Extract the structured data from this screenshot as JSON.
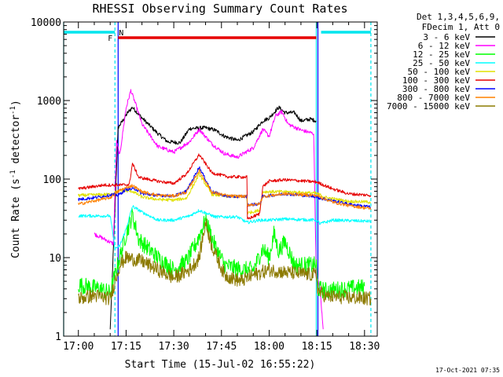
{
  "chart_data": {
    "type": "line",
    "title": "RHESSI Observing Summary Count Rates",
    "xlabel": "Start Time (15-Jul-02 16:55:22)",
    "ylabel_main": "Count Rate (s",
    "ylabel_sup1": "-1",
    "ylabel_mid": " detector",
    "ylabel_sup2": "-1",
    "ylabel_end": ")",
    "yscale": "log",
    "xlim": [
      "16:55:22",
      "18:34:00"
    ],
    "ylim": [
      1,
      10000
    ],
    "x_ticks": [
      "17:00",
      "17:15",
      "17:30",
      "17:45",
      "18:00",
      "18:15",
      "18:30"
    ],
    "y_ticks": [
      "1",
      "10",
      "100",
      "1000",
      "10000"
    ],
    "legend_header": [
      "Det 1,3,4,5,6,9,",
      "FDecim 1, Att 0"
    ],
    "legend_placement": "right",
    "timestamp": "17-Oct-2021 07:35",
    "flags": [
      {
        "label": "N",
        "color": "#00e5ee",
        "segments": [
          [
            "16:55:22",
            "17:11:30"
          ],
          [
            "18:16:20",
            "18:32:00"
          ]
        ]
      },
      {
        "label": "F",
        "color": "#e60000",
        "segments": [
          [
            "17:12:30",
            "18:14:50"
          ]
        ]
      }
    ],
    "markers": [
      {
        "time": "16:55:22",
        "color": "#00e5ee",
        "style": "solid"
      },
      {
        "time": "17:11:30",
        "color": "#00e5ee",
        "style": "dashed"
      },
      {
        "time": "18:14:50",
        "color": "#00e5ee",
        "style": "solid"
      },
      {
        "time": "18:32:00",
        "color": "#00e5ee",
        "style": "dashed"
      },
      {
        "time": "17:12:30",
        "color": "#0000ff",
        "style": "solid"
      },
      {
        "time": "18:15:20",
        "color": "#0000ff",
        "style": "solid"
      }
    ],
    "series": [
      {
        "name": "3 - 6 keV",
        "color": "#000000",
        "points": [
          [
            "17:10:00",
            1.2
          ],
          [
            "17:12:30",
            450
          ],
          [
            "17:15:30",
            700
          ],
          [
            "17:17:00",
            820
          ],
          [
            "17:20:00",
            600
          ],
          [
            "17:25:00",
            380
          ],
          [
            "17:28:00",
            300
          ],
          [
            "17:32:00",
            290
          ],
          [
            "17:35:00",
            440
          ],
          [
            "17:40:00",
            450
          ],
          [
            "17:43:00",
            420
          ],
          [
            "17:46:00",
            350
          ],
          [
            "17:50:00",
            310
          ],
          [
            "17:55:00",
            400
          ],
          [
            "17:58:00",
            550
          ],
          [
            "18:00:00",
            600
          ],
          [
            "18:03:00",
            820
          ],
          [
            "18:05:00",
            700
          ],
          [
            "18:08:00",
            700
          ],
          [
            "18:10:00",
            550
          ],
          [
            "18:13:00",
            580
          ],
          [
            "18:14:50",
            550
          ]
        ]
      },
      {
        "name": "6 - 12 keV",
        "color": "#ff00ff",
        "points": [
          [
            "17:05:00",
            20
          ],
          [
            "17:11:00",
            15
          ],
          [
            "17:12:00",
            300
          ],
          [
            "17:13:00",
            200
          ],
          [
            "17:15:00",
            800
          ],
          [
            "17:16:30",
            1350
          ],
          [
            "17:18:00",
            900
          ],
          [
            "17:20:00",
            500
          ],
          [
            "17:25:00",
            260
          ],
          [
            "17:30:00",
            220
          ],
          [
            "17:35:00",
            300
          ],
          [
            "17:38:00",
            430
          ],
          [
            "17:42:00",
            280
          ],
          [
            "17:46:00",
            210
          ],
          [
            "17:50:00",
            190
          ],
          [
            "17:55:00",
            250
          ],
          [
            "17:58:00",
            430
          ],
          [
            "18:00:00",
            350
          ],
          [
            "18:02:00",
            640
          ],
          [
            "18:04:00",
            720
          ],
          [
            "18:06:00",
            500
          ],
          [
            "18:10:00",
            420
          ],
          [
            "18:14:00",
            380
          ],
          [
            "18:14:50",
            6
          ],
          [
            "18:16:00",
            4
          ],
          [
            "18:17:00",
            1.2
          ]
        ]
      },
      {
        "name": "12 - 25 keV",
        "color": "#00ff00",
        "points": [
          [
            "17:00:00",
            4.5
          ],
          [
            "17:07:00",
            4
          ],
          [
            "17:10:00",
            3.5
          ],
          [
            "17:11:30",
            6
          ],
          [
            "17:13:00",
            10
          ],
          [
            "17:15:00",
            20
          ],
          [
            "17:17:00",
            35
          ],
          [
            "17:19:00",
            17
          ],
          [
            "17:25:00",
            10
          ],
          [
            "17:30:00",
            7
          ],
          [
            "17:34:00",
            9
          ],
          [
            "17:37:00",
            15
          ],
          [
            "17:40:00",
            30
          ],
          [
            "17:43:00",
            14
          ],
          [
            "17:46:00",
            8
          ],
          [
            "17:51:00",
            7
          ],
          [
            "17:55:00",
            7
          ],
          [
            "17:58:00",
            13
          ],
          [
            "18:00:00",
            10
          ],
          [
            "18:01:30",
            20
          ],
          [
            "18:03:00",
            12
          ],
          [
            "18:05:00",
            16
          ],
          [
            "18:08:00",
            8
          ],
          [
            "18:14:50",
            8
          ],
          [
            "18:15:20",
            4
          ],
          [
            "18:18:00",
            3.8
          ],
          [
            "18:30:00",
            4.2
          ]
        ]
      },
      {
        "name": "25 - 50 keV",
        "color": "#00ffff",
        "points": [
          [
            "17:00:00",
            34
          ],
          [
            "17:10:00",
            34
          ],
          [
            "17:11:30",
            13
          ],
          [
            "17:13:00",
            14
          ],
          [
            "17:15:00",
            23
          ],
          [
            "17:17:00",
            45
          ],
          [
            "17:20:00",
            38
          ],
          [
            "17:25:00",
            30
          ],
          [
            "17:30:00",
            30
          ],
          [
            "17:35:00",
            34
          ],
          [
            "17:38:00",
            40
          ],
          [
            "17:43:00",
            33
          ],
          [
            "17:50:00",
            33
          ],
          [
            "17:53:00",
            28
          ],
          [
            "17:57:00",
            30
          ],
          [
            "18:00:00",
            30
          ],
          [
            "18:05:00",
            31
          ],
          [
            "18:14:50",
            30
          ],
          [
            "18:16:00",
            27
          ],
          [
            "18:20:00",
            30
          ],
          [
            "18:32:00",
            29
          ]
        ]
      },
      {
        "name": "50 - 100 keV",
        "color": "#e0e000",
        "points": [
          [
            "17:00:00",
            62
          ],
          [
            "17:10:00",
            64
          ],
          [
            "17:13:00",
            71
          ],
          [
            "17:17:00",
            70
          ],
          [
            "17:20:00",
            59
          ],
          [
            "17:25:00",
            55
          ],
          [
            "17:30:00",
            54
          ],
          [
            "17:34:00",
            57
          ],
          [
            "17:38:00",
            115
          ],
          [
            "17:42:00",
            64
          ],
          [
            "17:47:00",
            60
          ],
          [
            "17:53:00",
            60
          ],
          [
            "17:53:10",
            37
          ],
          [
            "17:57:00",
            40
          ],
          [
            "17:58:00",
            69
          ],
          [
            "18:05:00",
            69
          ],
          [
            "18:14:50",
            66
          ],
          [
            "18:18:00",
            58
          ],
          [
            "18:25:00",
            52
          ],
          [
            "18:32:00",
            51
          ]
        ]
      },
      {
        "name": "100 - 300 keV",
        "color": "#e60000",
        "points": [
          [
            "17:00:00",
            75
          ],
          [
            "17:08:00",
            84
          ],
          [
            "17:13:00",
            84
          ],
          [
            "17:16:00",
            85
          ],
          [
            "17:17:00",
            158
          ],
          [
            "17:19:00",
            105
          ],
          [
            "17:25:00",
            94
          ],
          [
            "17:30:00",
            88
          ],
          [
            "17:34:00",
            116
          ],
          [
            "17:38:00",
            205
          ],
          [
            "17:42:00",
            120
          ],
          [
            "17:47:00",
            107
          ],
          [
            "17:53:00",
            106
          ],
          [
            "17:53:10",
            31
          ],
          [
            "17:57:00",
            36
          ],
          [
            "17:58:00",
            80
          ],
          [
            "18:00:00",
            94
          ],
          [
            "18:05:00",
            98
          ],
          [
            "18:14:50",
            92
          ],
          [
            "18:20:00",
            75
          ],
          [
            "18:25:00",
            65
          ],
          [
            "18:32:00",
            62
          ]
        ]
      },
      {
        "name": "300 - 800 keV",
        "color": "#0000ff",
        "points": [
          [
            "17:00:00",
            55
          ],
          [
            "17:05:00",
            58
          ],
          [
            "17:11:30",
            64
          ],
          [
            "17:12:30",
            62
          ],
          [
            "17:15:00",
            74
          ],
          [
            "17:18:00",
            75
          ],
          [
            "17:20:00",
            65
          ],
          [
            "17:25:00",
            62
          ],
          [
            "17:30:00",
            61
          ],
          [
            "17:34:00",
            70
          ],
          [
            "17:38:00",
            142
          ],
          [
            "17:42:00",
            69
          ],
          [
            "17:47:00",
            60
          ],
          [
            "17:53:00",
            60
          ],
          [
            "17:53:10",
            47
          ],
          [
            "17:57:00",
            48
          ],
          [
            "17:58:00",
            60
          ],
          [
            "18:05:00",
            65
          ],
          [
            "18:14:50",
            60
          ],
          [
            "18:16:00",
            57
          ],
          [
            "18:25:00",
            48
          ],
          [
            "18:32:00",
            44
          ]
        ]
      },
      {
        "name": "800 - 7000 keV",
        "color": "#ff8000",
        "points": [
          [
            "17:00:00",
            48
          ],
          [
            "17:10:00",
            58
          ],
          [
            "17:13:00",
            72
          ],
          [
            "17:17:00",
            83
          ],
          [
            "17:20:00",
            69
          ],
          [
            "17:25:00",
            62
          ],
          [
            "17:30:00",
            61
          ],
          [
            "17:34:00",
            68
          ],
          [
            "17:38:00",
            128
          ],
          [
            "17:42:00",
            68
          ],
          [
            "17:47:00",
            61
          ],
          [
            "17:53:00",
            60
          ],
          [
            "17:53:10",
            47
          ],
          [
            "17:57:00",
            48
          ],
          [
            "17:58:00",
            60
          ],
          [
            "18:05:00",
            65
          ],
          [
            "18:14:50",
            62
          ],
          [
            "18:20:00",
            51
          ],
          [
            "18:25:00",
            46
          ],
          [
            "18:32:00",
            42
          ]
        ]
      },
      {
        "name": "7000 - 15000 keV",
        "color": "#8c7a00",
        "points": [
          [
            "17:00:00",
            3
          ],
          [
            "17:05:00",
            3.3
          ],
          [
            "17:10:00",
            3
          ],
          [
            "17:11:30",
            5
          ],
          [
            "17:13:00",
            8
          ],
          [
            "17:15:00",
            10
          ],
          [
            "17:20:00",
            9
          ],
          [
            "17:25:00",
            7
          ],
          [
            "17:30:00",
            5.5
          ],
          [
            "17:35:00",
            7
          ],
          [
            "17:38:00",
            10
          ],
          [
            "17:40:00",
            28
          ],
          [
            "17:42:00",
            14
          ],
          [
            "17:46:00",
            6
          ],
          [
            "17:51:00",
            5
          ],
          [
            "17:55:00",
            6
          ],
          [
            "18:00:00",
            7
          ],
          [
            "18:05:00",
            6.5
          ],
          [
            "18:14:50",
            6
          ],
          [
            "18:15:20",
            3.8
          ],
          [
            "18:18:00",
            3.2
          ],
          [
            "18:32:00",
            3
          ]
        ]
      }
    ]
  }
}
